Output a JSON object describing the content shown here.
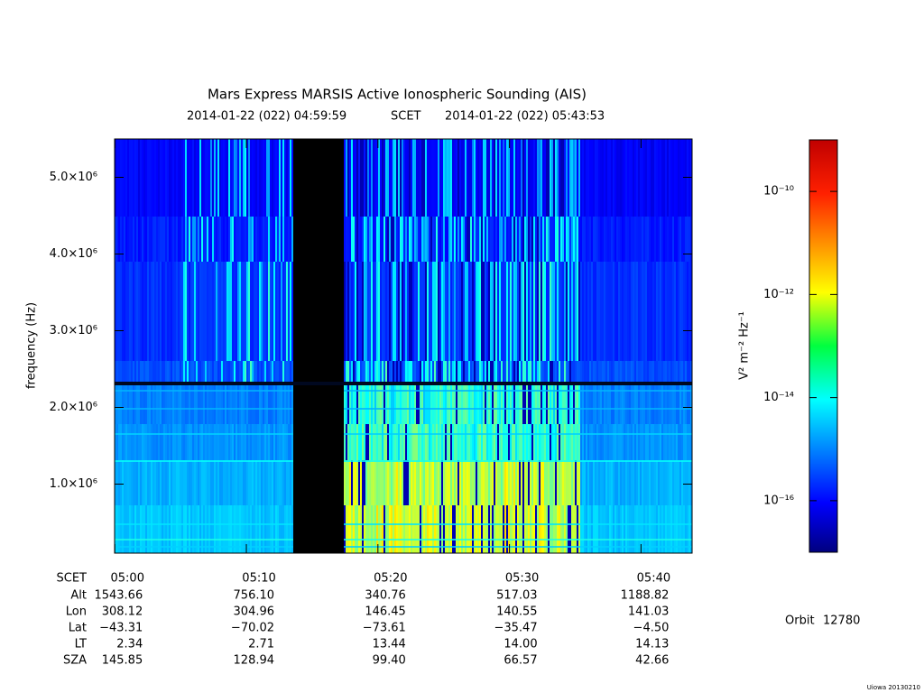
{
  "chart_data": {
    "type": "spectrogram",
    "title": "Mars Express MARSIS Active Ionospheric Sounding (AIS)",
    "start_time": "2014-01-22 (022) 04:59:59",
    "time_label": "SCET",
    "end_time": "2014-01-22 (022) 05:43:53",
    "y_label": "frequency (Hz)",
    "ylim": [
      100000,
      5500000
    ],
    "yticks": [
      {
        "value": 1000000,
        "label": "1.0×10⁶"
      },
      {
        "value": 2000000,
        "label": "2.0×10⁶"
      },
      {
        "value": 3000000,
        "label": "3.0×10⁶"
      },
      {
        "value": 4000000,
        "label": "4.0×10⁶"
      },
      {
        "value": 5000000,
        "label": "5.0×10⁶"
      }
    ],
    "xlim": [
      -0.017,
      43.883
    ],
    "xticks": [
      {
        "value": 0,
        "label": "05:00"
      },
      {
        "value": 10,
        "label": "05:10"
      },
      {
        "value": 20,
        "label": "05:20"
      },
      {
        "value": 30,
        "label": "05:30"
      },
      {
        "value": 40,
        "label": "05:40"
      }
    ],
    "ephemeris": {
      "labels": [
        "Alt",
        "Lon",
        "Lat",
        "LT",
        "SZA"
      ],
      "rows": [
        [
          1543.66,
          756.1,
          340.76,
          517.03,
          1188.82
        ],
        [
          308.12,
          304.96,
          146.45,
          140.55,
          141.03
        ],
        [
          -43.31,
          -70.02,
          -73.61,
          -35.47,
          -4.5
        ],
        [
          2.34,
          2.71,
          13.44,
          14.0,
          14.13
        ],
        [
          145.85,
          128.94,
          99.4,
          66.57,
          42.66
        ]
      ],
      "value_labels": [
        [
          "1543.66",
          "756.10",
          "340.76",
          "517.03",
          "1188.82"
        ],
        [
          "308.12",
          "304.96",
          "146.45",
          "140.55",
          "141.03"
        ],
        [
          "−43.31",
          "−70.02",
          "−73.61",
          "−35.47",
          "−4.50"
        ],
        [
          "2.34",
          "2.71",
          "13.44",
          "14.00",
          "14.13"
        ],
        [
          "145.85",
          "128.94",
          "99.40",
          "66.57",
          "42.66"
        ]
      ]
    },
    "colorbar": {
      "label": "V² m⁻² Hz⁻¹",
      "log": true,
      "lim": [
        1e-17,
        1e-09
      ],
      "ticks": [
        {
          "value": 1e-16,
          "label": "10⁻¹⁶"
        },
        {
          "value": 1e-14,
          "label": "10⁻¹⁴"
        },
        {
          "value": 1e-12,
          "label": "10⁻¹²"
        },
        {
          "value": 1e-10,
          "label": "10⁻¹⁰"
        }
      ]
    },
    "orbit_label": "Orbit",
    "orbit": 12780,
    "footer": "Uiowa 20130210"
  }
}
